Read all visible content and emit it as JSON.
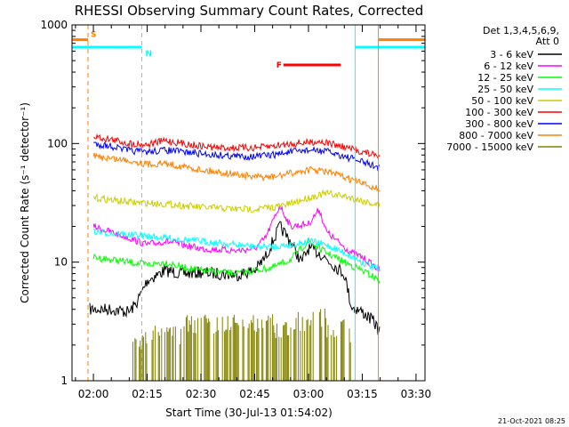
{
  "chart_data": {
    "type": "line",
    "title": "RHESSI Observing Summary Count Rates, Corrected",
    "xlabel": "Start Time (30-Jul-13 01:54:02)",
    "ylabel": "Corrected Count Rate (s⁻¹ detector⁻¹)",
    "x_ticks": [
      "02:00",
      "02:15",
      "02:30",
      "02:45",
      "03:00",
      "03:15",
      "03:30"
    ],
    "y_ticks": [
      "1",
      "10",
      "100",
      "1000"
    ],
    "xlim": [
      "01:54:02",
      "03:32:30"
    ],
    "ylim": [
      1,
      1000
    ],
    "yscale": "log",
    "legend_header": [
      "Det 1,3,4,5,6,9,",
      "Att 0"
    ],
    "legend_placement": "right",
    "timestamp": "21-Oct-2021 08:25",
    "series": [
      {
        "name": "3 - 6 keV",
        "color": "#000000",
        "t": [
          "01:59",
          "02:05",
          "02:10",
          "02:12",
          "02:15",
          "02:20",
          "02:25",
          "02:30",
          "02:35",
          "02:40",
          "02:45",
          "02:48",
          "02:52",
          "02:55",
          "02:58",
          "03:00",
          "03:03",
          "03:06",
          "03:10",
          "03:12",
          "03:15",
          "03:18",
          "03:20"
        ],
        "values": [
          4.0,
          4.0,
          3.8,
          4.5,
          7.0,
          8.5,
          8.0,
          8.2,
          8.0,
          7.8,
          8.5,
          11,
          20,
          15,
          10,
          13,
          12,
          10,
          8,
          4.2,
          3.8,
          3.2,
          2.6
        ]
      },
      {
        "name": "6 - 12 keV",
        "color": "#ff00ff",
        "t": [
          "02:00",
          "02:10",
          "02:15",
          "02:20",
          "02:30",
          "02:40",
          "02:45",
          "02:48",
          "02:52",
          "02:55",
          "03:00",
          "03:03",
          "03:05",
          "03:08",
          "03:12",
          "03:15",
          "03:20"
        ],
        "values": [
          20,
          16,
          14,
          15,
          13,
          12.5,
          13,
          16,
          30,
          20,
          21,
          28,
          18,
          15,
          12,
          11,
          8.5
        ]
      },
      {
        "name": "12 - 25 keV",
        "color": "#00ff00",
        "t": [
          "02:00",
          "02:10",
          "02:15",
          "02:20",
          "02:25",
          "02:30",
          "02:40",
          "02:45",
          "02:50",
          "02:55",
          "03:00",
          "03:05",
          "03:10",
          "03:15",
          "03:20"
        ],
        "values": [
          11,
          10,
          9.5,
          10,
          9,
          8.5,
          8,
          8.5,
          9,
          10.5,
          15,
          12,
          10,
          8.5,
          7
        ]
      },
      {
        "name": "25 - 50 keV",
        "color": "#00ffff",
        "t": [
          "02:00",
          "02:10",
          "02:15",
          "02:20",
          "02:30",
          "02:40",
          "02:45",
          "02:50",
          "02:55",
          "03:00",
          "03:05",
          "03:10",
          "03:15",
          "03:20"
        ],
        "values": [
          18,
          17,
          16.5,
          16,
          15,
          14,
          13.5,
          13.5,
          14,
          15,
          14,
          12,
          10,
          8.5
        ]
      },
      {
        "name": "50 - 100 keV",
        "color": "#cccc00",
        "t": [
          "02:00",
          "02:10",
          "02:20",
          "02:30",
          "02:40",
          "02:45",
          "02:50",
          "02:55",
          "03:00",
          "03:05",
          "03:10",
          "03:15",
          "03:20"
        ],
        "values": [
          35,
          32,
          31,
          29,
          28,
          28,
          29,
          31,
          35,
          38,
          36,
          33,
          30
        ]
      },
      {
        "name": "100 - 300 keV",
        "color": "#ff0000",
        "t": [
          "02:00",
          "02:05",
          "02:10",
          "02:15",
          "02:20",
          "02:25",
          "02:30",
          "02:35",
          "02:40",
          "02:45",
          "02:50",
          "02:55",
          "03:00",
          "03:03",
          "03:06",
          "03:10",
          "03:15",
          "03:20"
        ],
        "values": [
          115,
          108,
          100,
          98,
          106,
          100,
          95,
          92,
          92,
          92,
          95,
          100,
          102,
          105,
          100,
          93,
          85,
          78
        ]
      },
      {
        "name": "300 - 800 keV",
        "color": "#0000ff",
        "t": [
          "02:00",
          "02:05",
          "02:10",
          "02:15",
          "02:20",
          "02:30",
          "02:40",
          "02:45",
          "02:50",
          "02:55",
          "03:00",
          "03:05",
          "03:10",
          "03:15",
          "03:20"
        ],
        "values": [
          100,
          95,
          87,
          85,
          88,
          82,
          78,
          78,
          80,
          85,
          88,
          86,
          78,
          70,
          62
        ]
      },
      {
        "name": "800 - 7000 keV",
        "color": "#ff8000",
        "t": [
          "02:00",
          "02:10",
          "02:15",
          "02:20",
          "02:30",
          "02:40",
          "02:45",
          "02:50",
          "02:55",
          "03:00",
          "03:05",
          "03:10",
          "03:15",
          "03:20"
        ],
        "values": [
          78,
          72,
          67,
          68,
          60,
          55,
          52,
          52,
          56,
          60,
          58,
          52,
          46,
          41
        ]
      },
      {
        "name": "7000 - 15000 keV",
        "color": "#808000",
        "t": [
          "02:11",
          "02:15",
          "02:20",
          "02:25",
          "02:50",
          "02:55",
          "03:00",
          "03:05",
          "03:10",
          "03:12"
        ],
        "values": [
          1.8,
          2.2,
          2.0,
          2.5,
          2.2,
          2.6,
          2.8,
          2.3,
          2.1,
          1.9
        ]
      }
    ],
    "bars": [
      {
        "label": "S",
        "color": "#ff8000",
        "start": "01:54:02",
        "end": "01:58:30",
        "level": 750
      },
      {
        "label": "N",
        "color": "#00ffff",
        "start": "01:54:02",
        "end": "02:13:30",
        "level": 650
      },
      {
        "label": "",
        "color": "#00ffff",
        "start": "03:13:00",
        "end": "03:32:30",
        "level": 650
      },
      {
        "label": "",
        "color": "#ff8000",
        "start": "03:19:30",
        "end": "03:32:30",
        "level": 750
      },
      {
        "label": "F",
        "color": "#ff0000",
        "start": "02:53:00",
        "end": "03:09:00",
        "level": 460
      }
    ],
    "vlines": [
      {
        "t": "01:54:02",
        "color": "#00ffff",
        "style": "solid"
      },
      {
        "t": "01:58:30",
        "color": "#ff8000",
        "style": "dashed"
      },
      {
        "t": "02:13:30",
        "color": "#00ffff",
        "style": "dashed"
      },
      {
        "t": "03:13:00",
        "color": "#00ffff",
        "style": "solid"
      },
      {
        "t": "03:19:30",
        "color": "#ff8000",
        "style": "solid"
      },
      {
        "t": "03:32:30",
        "color": "#00ffff",
        "style": "dashed"
      }
    ]
  }
}
